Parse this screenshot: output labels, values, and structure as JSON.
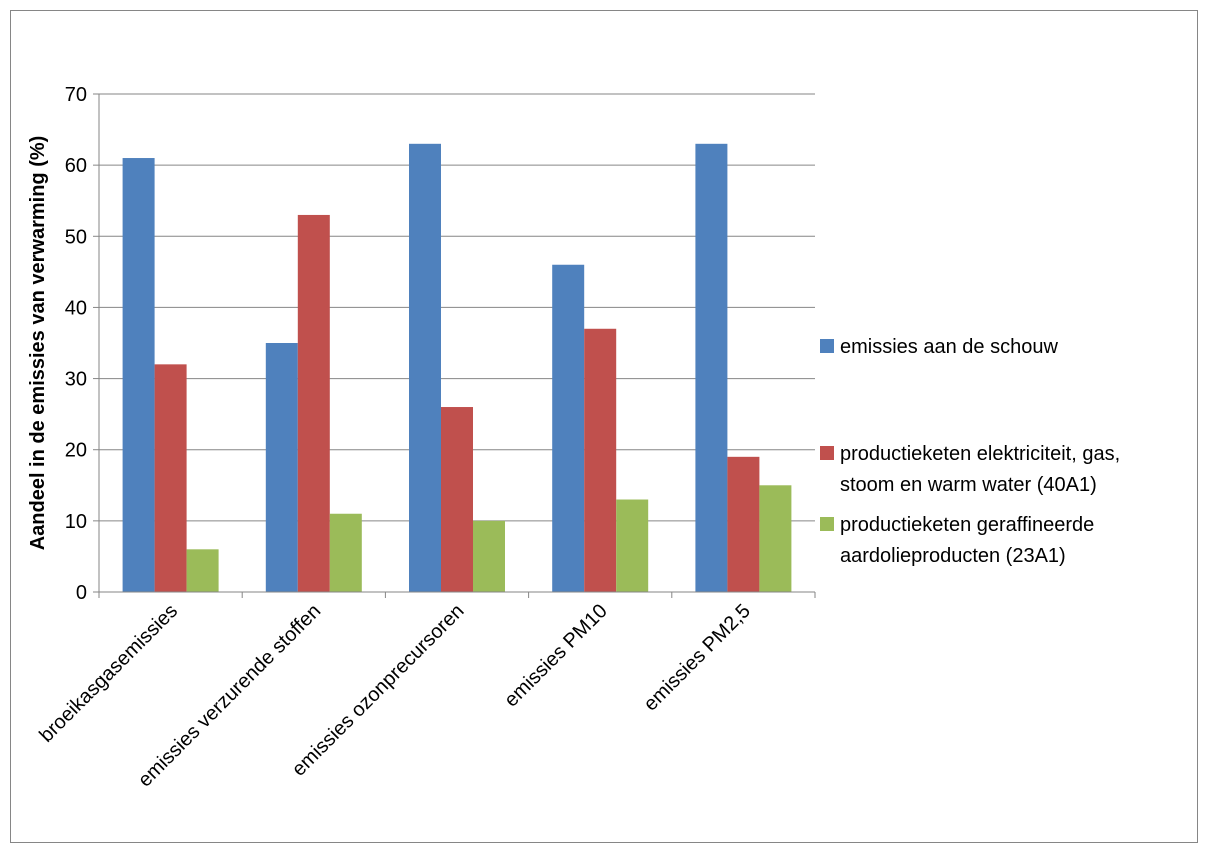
{
  "chart_data": {
    "type": "bar",
    "ylabel": "Aandeel in de emissies van verwarming (%)",
    "xlabel": "",
    "ylim": [
      0,
      70
    ],
    "yticks": [
      0,
      10,
      20,
      30,
      40,
      50,
      60,
      70
    ],
    "grid": true,
    "legend_position": "right",
    "categories": [
      "broeikasgasemissies",
      "emissies verzurende stoffen",
      "emissies ozonprecursoren",
      "emissies PM10",
      "emissies PM2,5"
    ],
    "series": [
      {
        "name": "emissies aan de schouw",
        "legend_lines": [
          "emissies aan de schouw"
        ],
        "color": "#4F81BD",
        "values": [
          61,
          35,
          63,
          46,
          63
        ]
      },
      {
        "name": "productieketen elektriciteit, gas, stoom en warm water (40A1)",
        "legend_lines": [
          "productieketen elektriciteit, gas,",
          "stoom en warm water (40A1)"
        ],
        "color": "#C0504D",
        "values": [
          32,
          53,
          26,
          37,
          19
        ]
      },
      {
        "name": "productieketen geraffineerde aardolieproducten (23A1)",
        "legend_lines": [
          "productieketen geraffineerde",
          "aardolieproducten (23A1)"
        ],
        "color": "#9BBB59",
        "values": [
          6,
          11,
          10,
          13,
          15
        ]
      }
    ]
  }
}
